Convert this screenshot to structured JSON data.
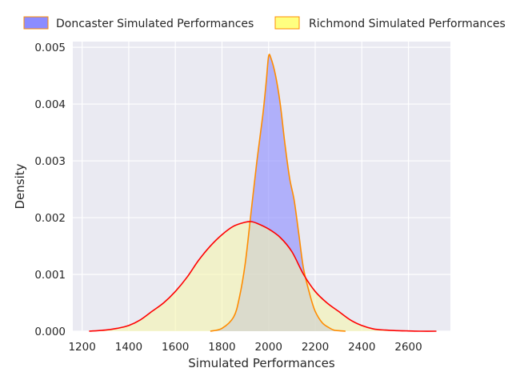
{
  "chart_data": {
    "type": "area",
    "title": "",
    "xlabel": "Simulated Performances",
    "ylabel": "Density",
    "xlim": [
      1160,
      2780
    ],
    "ylim": [
      0,
      0.0051
    ],
    "xticks": [
      1200,
      1400,
      1600,
      1800,
      2000,
      2200,
      2400,
      2600
    ],
    "xtick_labels": [
      "1200",
      "1400",
      "1600",
      "1800",
      "2000",
      "2200",
      "2400",
      "2600"
    ],
    "yticks": [
      0,
      0.001,
      0.002,
      0.003,
      0.004,
      0.005
    ],
    "ytick_labels": [
      "0.000",
      "0.001",
      "0.002",
      "0.003",
      "0.004",
      "0.005"
    ],
    "grid": true,
    "legend_position": "top-center",
    "series": [
      {
        "name": "Doncaster Simulated Performances",
        "fill_color": "#8c8cff",
        "line_color": "#ff8c00",
        "x": [
          1750,
          1800,
          1850,
          1875,
          1900,
          1925,
          1950,
          1975,
          1990,
          2000,
          2010,
          2030,
          2050,
          2070,
          2090,
          2110,
          2130,
          2150,
          2180,
          2200,
          2230,
          2260,
          2280,
          2300,
          2330
        ],
        "y": [
          0,
          5e-05,
          0.00025,
          0.0006,
          0.0012,
          0.0021,
          0.003,
          0.0038,
          0.0044,
          0.00484,
          0.00481,
          0.0045,
          0.004,
          0.0033,
          0.0027,
          0.0023,
          0.0017,
          0.0011,
          0.0006,
          0.00035,
          0.00015,
          6e-05,
          2e-05,
          1e-05,
          0
        ]
      },
      {
        "name": "Richmond Simulated Performances",
        "fill_color": "#f5f5b0",
        "line_color": "#ff0000",
        "x": [
          1230,
          1300,
          1350,
          1400,
          1450,
          1500,
          1550,
          1600,
          1650,
          1700,
          1750,
          1800,
          1850,
          1900,
          1925,
          1950,
          2000,
          2050,
          2100,
          2150,
          2200,
          2250,
          2300,
          2350,
          2400,
          2450,
          2500,
          2550,
          2600,
          2650,
          2720
        ],
        "y": [
          0,
          2e-05,
          5e-05,
          0.0001,
          0.0002,
          0.00035,
          0.0005,
          0.0007,
          0.00095,
          0.00125,
          0.0015,
          0.0017,
          0.00185,
          0.00192,
          0.00193,
          0.0019,
          0.0018,
          0.00165,
          0.0014,
          0.001,
          0.0007,
          0.0005,
          0.00035,
          0.0002,
          0.0001,
          4e-05,
          2e-05,
          1e-05,
          5e-06,
          0,
          0
        ]
      }
    ]
  }
}
